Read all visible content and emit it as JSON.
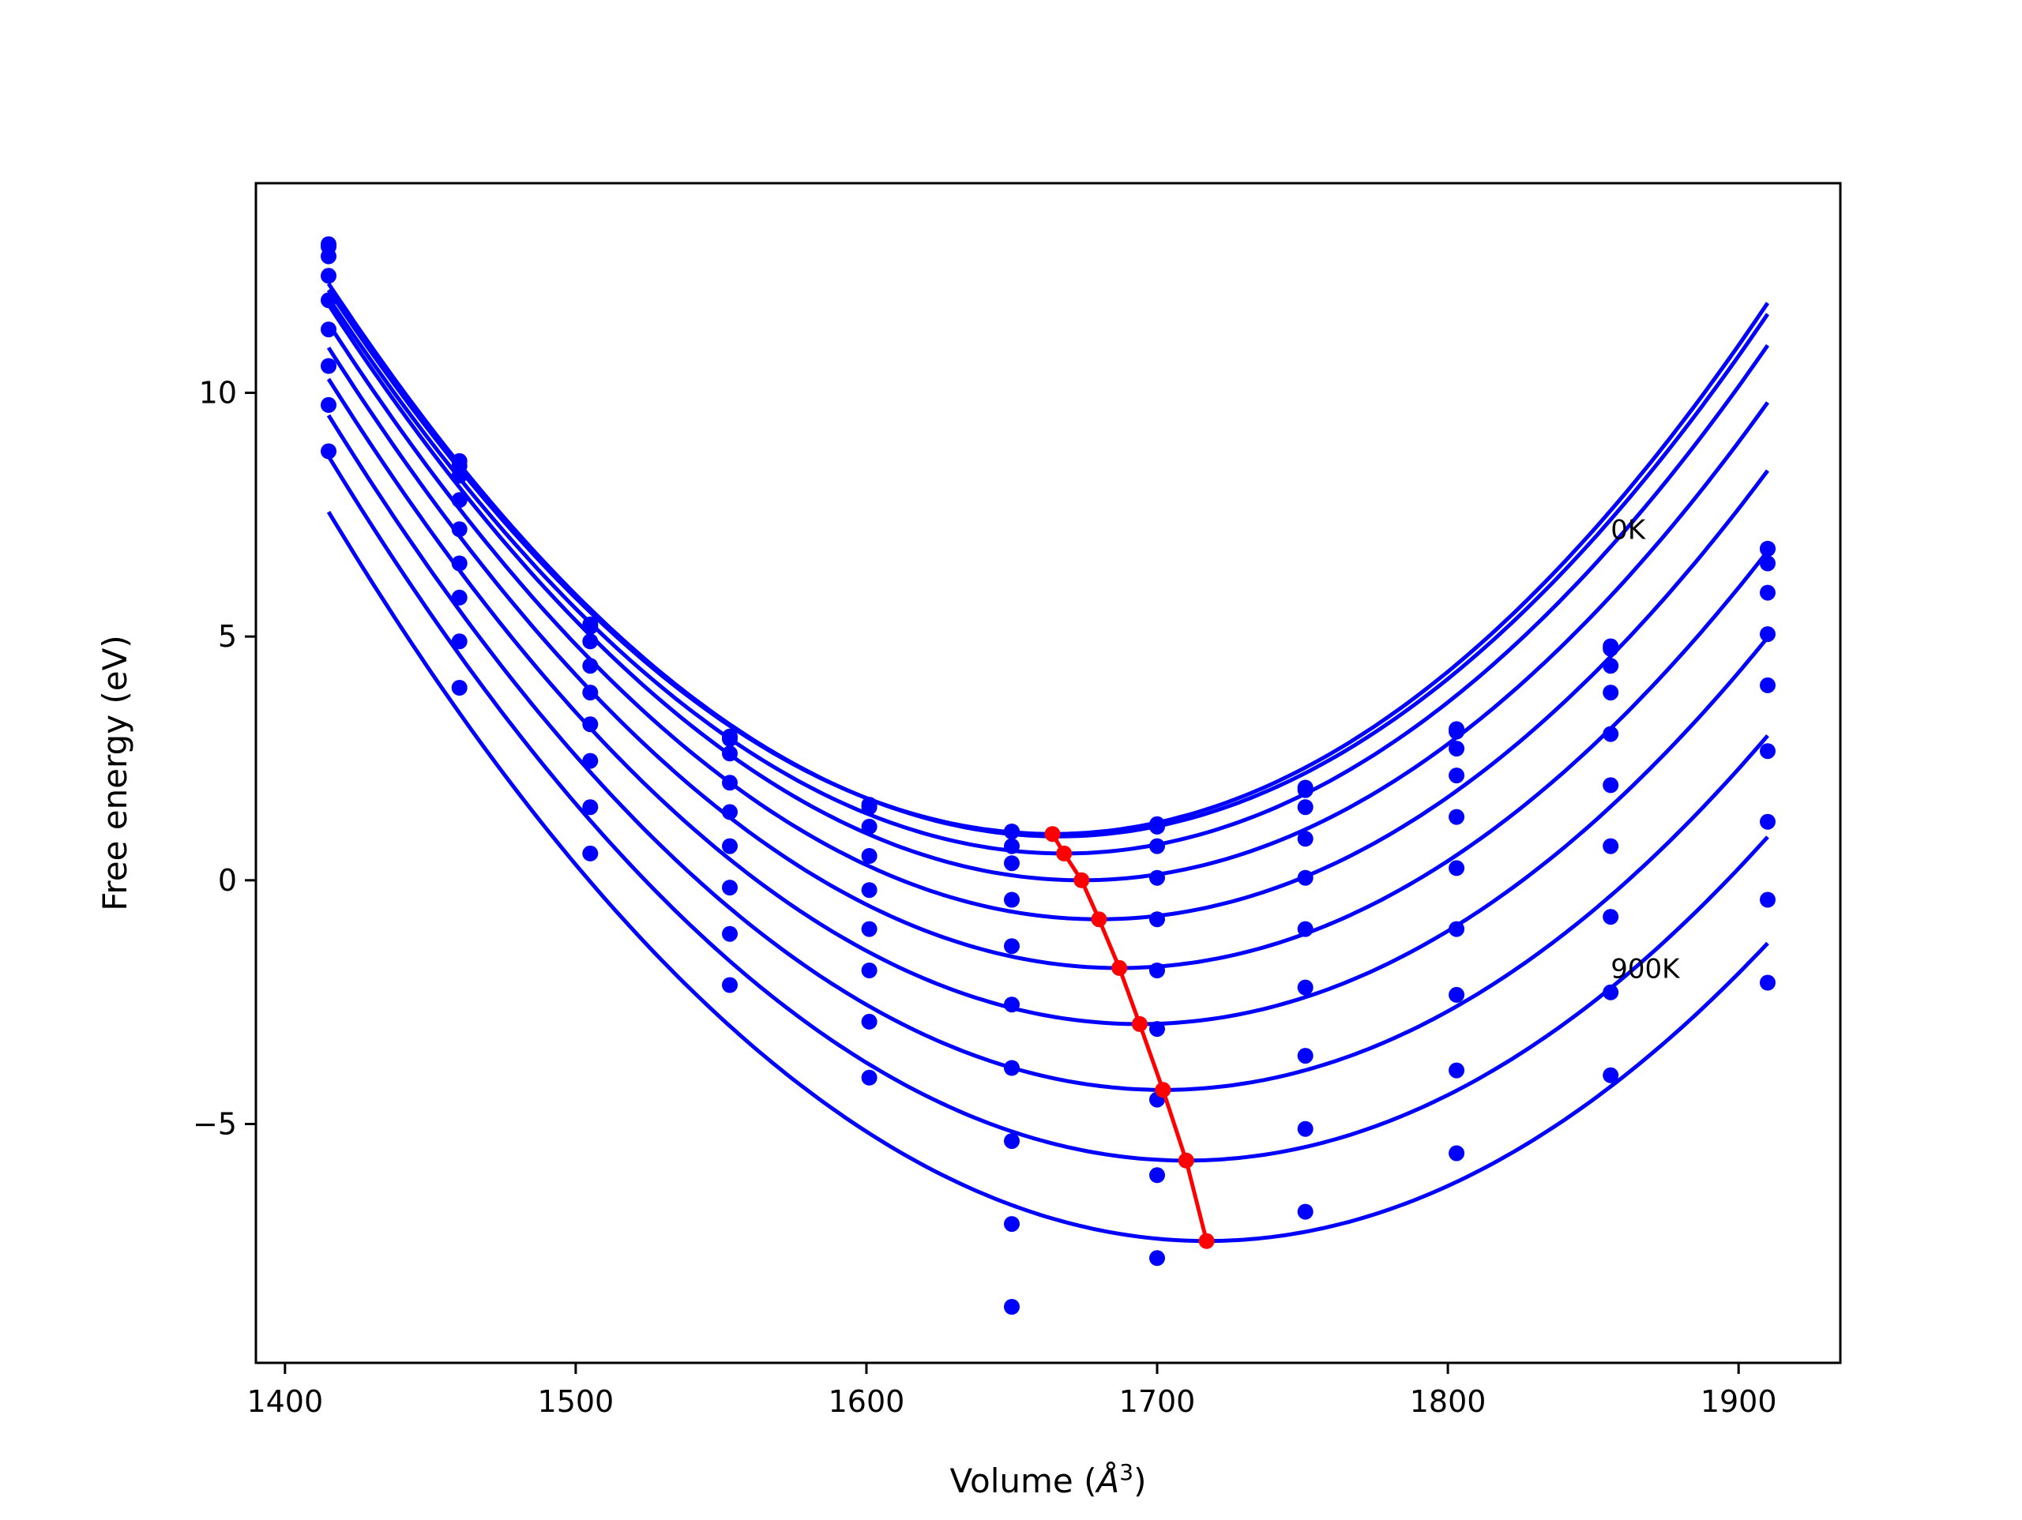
{
  "chart_data": {
    "type": "scatter",
    "xlabel": "Volume (",
    "xlabel_symbol": "Å",
    "xlabel_exp": "3",
    "xlabel_close": ")",
    "ylabel": "Free energy (eV)",
    "xlim": [
      1390,
      1935
    ],
    "ylim": [
      -9.9,
      14.3
    ],
    "x_ticks": [
      1400,
      1500,
      1600,
      1700,
      1800,
      1900
    ],
    "x_tick_labels": [
      "1400",
      "1500",
      "1600",
      "1700",
      "1800",
      "1900"
    ],
    "y_ticks": [
      -5,
      0,
      5,
      10
    ],
    "y_tick_labels": [
      "−5",
      "0",
      "5",
      "10"
    ],
    "grid": false,
    "annotations": [
      {
        "text": "0K",
        "x": 1856,
        "y": 7.0
      },
      {
        "text": "900K",
        "x": 1856,
        "y": -2.0
      }
    ],
    "colors": {
      "points": "#0000ff",
      "fits": "#0000ff",
      "minimum_path": "#ff0000"
    },
    "volumes": [
      1415,
      1460,
      1505,
      1553,
      1601,
      1650,
      1700,
      1751,
      1803,
      1856,
      1910
    ],
    "series": [
      {
        "name": "0K",
        "values": [
          13.0,
          8.5,
          5.2,
          2.9,
          1.5,
          1.0,
          1.1,
          1.9,
          3.1,
          4.8,
          6.8
        ],
        "fit": {
          "v0": 1664,
          "e0": 0.95,
          "b": 0.00018
        }
      },
      {
        "name": "",
        "values": [
          13.05,
          8.6,
          5.25,
          2.95,
          1.55,
          1.0,
          1.15,
          1.85,
          3.05,
          4.75,
          6.8
        ],
        "fit": {
          "v0": 1666,
          "e0": 0.9,
          "b": 0.00018
        }
      },
      {
        "name": "",
        "values": [
          12.8,
          8.3,
          4.9,
          2.6,
          1.1,
          0.7,
          0.7,
          1.5,
          2.7,
          4.4,
          6.5
        ],
        "fit": {
          "v0": 1668,
          "e0": 0.55,
          "b": 0.000178
        }
      },
      {
        "name": "",
        "values": [
          12.4,
          7.8,
          4.4,
          2.0,
          0.5,
          0.35,
          0.05,
          0.85,
          2.15,
          3.85,
          5.9
        ],
        "fit": {
          "v0": 1674,
          "e0": 0.0,
          "b": 0.000176
        }
      },
      {
        "name": "",
        "values": [
          11.9,
          7.2,
          3.85,
          1.4,
          -0.2,
          -0.4,
          -0.8,
          0.05,
          1.3,
          3.0,
          5.05
        ],
        "fit": {
          "v0": 1680,
          "e0": -0.8,
          "b": 0.000174
        }
      },
      {
        "name": "",
        "values": [
          11.3,
          6.5,
          3.2,
          0.7,
          -1.0,
          -1.35,
          -1.85,
          -1.0,
          0.25,
          1.95,
          4.0
        ],
        "fit": {
          "v0": 1687,
          "e0": -1.8,
          "b": 0.000172
        }
      },
      {
        "name": "",
        "values": [
          10.55,
          5.8,
          2.45,
          -0.15,
          -1.85,
          -2.55,
          -3.05,
          -2.2,
          -1.0,
          0.7,
          2.65
        ],
        "fit": {
          "v0": 1694,
          "e0": -2.95,
          "b": 0.00017
        }
      },
      {
        "name": "",
        "values": [
          9.75,
          4.9,
          1.5,
          -1.1,
          -2.9,
          -3.85,
          -4.5,
          -3.6,
          -2.35,
          -0.75,
          1.2
        ],
        "fit": {
          "v0": 1702,
          "e0": -4.3,
          "b": 0.000168
        }
      },
      {
        "name": "",
        "values": [
          8.8,
          3.95,
          0.55,
          -2.15,
          -4.05,
          -5.35,
          -6.05,
          -5.1,
          -3.9,
          -2.3,
          -0.4
        ],
        "fit": {
          "v0": 1710,
          "e0": -5.75,
          "b": 0.000166
        }
      },
      {
        "name": "900K",
        "values": [
          null,
          null,
          null,
          null,
          null,
          -7.05,
          -7.75,
          -6.8,
          -5.6,
          -4.0,
          -2.1
        ],
        "fit": {
          "v0": 1717,
          "e0": -7.4,
          "b": 0.000164
        }
      },
      {
        "name": "",
        "values": [
          null,
          null,
          null,
          null,
          null,
          -8.75,
          null,
          null,
          null,
          null,
          null
        ],
        "fit": null
      }
    ],
    "minimum_path": {
      "x": [
        1664,
        1668,
        1674,
        1680,
        1687,
        1694,
        1702,
        1710,
        1717
      ],
      "y": [
        0.95,
        0.55,
        0.0,
        -0.8,
        -1.8,
        -2.95,
        -4.3,
        -5.75,
        -7.4
      ]
    }
  }
}
